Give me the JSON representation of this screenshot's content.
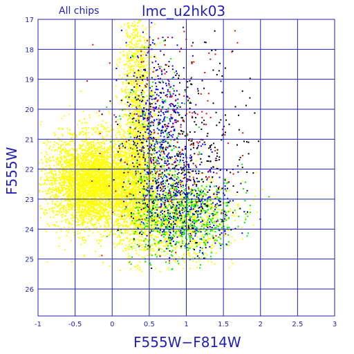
{
  "chart_data": {
    "type": "scatter",
    "title": "lmc_u2hk03",
    "subtitle": "All chips",
    "xlabel": "F555W−F814W",
    "ylabel": "F555W",
    "xlim": [
      -1,
      3
    ],
    "ylim": [
      26.9,
      17
    ],
    "y_inverted": true,
    "grid": true,
    "x_ticks": [
      "-1",
      "-0.5",
      "0",
      "0.5",
      "1",
      "1.5",
      "2",
      "2.5",
      "3"
    ],
    "y_ticks": [
      "17",
      "18",
      "19",
      "20",
      "21",
      "22",
      "23",
      "24",
      "25",
      "26"
    ],
    "series": [
      {
        "color": "#ffff00",
        "clusters": [
          {
            "x": -0.25,
            "y": 22.4,
            "sx": 0.32,
            "sy": 0.75,
            "n": 4200
          },
          {
            "x": 0.35,
            "y": 21.5,
            "sx": 0.12,
            "sy": 1.8,
            "n": 1600
          },
          {
            "x": 0.8,
            "y": 23.6,
            "sx": 0.4,
            "sy": 0.7,
            "n": 1300
          },
          {
            "x": 0.3,
            "y": 18.2,
            "sx": 0.1,
            "sy": 0.9,
            "n": 300
          }
        ]
      },
      {
        "color": "#00ee00",
        "clusters": [
          {
            "x": 0.95,
            "y": 23.6,
            "sx": 0.35,
            "sy": 0.7,
            "n": 600
          },
          {
            "x": 0.6,
            "y": 21.5,
            "sx": 0.25,
            "sy": 1.4,
            "n": 250
          }
        ]
      },
      {
        "color": "#0000ff",
        "clusters": [
          {
            "x": 0.6,
            "y": 20.5,
            "sx": 0.2,
            "sy": 1.6,
            "n": 450
          },
          {
            "x": 1.0,
            "y": 23.0,
            "sx": 0.3,
            "sy": 0.8,
            "n": 350
          }
        ]
      },
      {
        "color": "#000000",
        "clusters": [
          {
            "x": 0.9,
            "y": 21.5,
            "sx": 0.45,
            "sy": 1.6,
            "n": 380
          }
        ]
      },
      {
        "color": "#ff0000",
        "clusters": [
          {
            "x": 0.8,
            "y": 21.0,
            "sx": 0.45,
            "sy": 1.8,
            "n": 220
          }
        ]
      }
    ]
  }
}
